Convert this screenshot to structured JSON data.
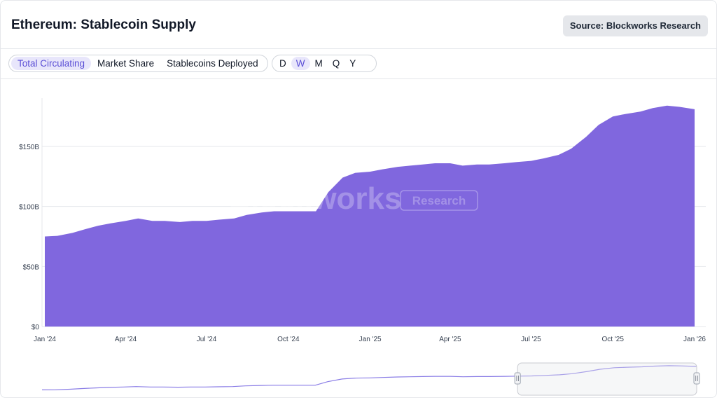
{
  "header": {
    "title": "Ethereum: Stablecoin Supply",
    "source": "Source: Blockworks Research"
  },
  "controls": {
    "metrics": [
      "Total Circulating",
      "Market Share",
      "Stablecoins Deployed"
    ],
    "active_metric": 0,
    "periods": [
      "D",
      "W",
      "M",
      "Q",
      "Y"
    ],
    "active_period": 1
  },
  "watermark": {
    "brand": "Blockworks",
    "badge": "Research"
  },
  "colors": {
    "area": "#8067de",
    "accent": "#5b4fd6",
    "grid": "#e5e7eb"
  },
  "chart_data": {
    "type": "area",
    "xlabel": "",
    "ylabel": "",
    "ylim": [
      0,
      190
    ],
    "x_ticks": [
      "Jan '24",
      "Apr '24",
      "Jul '24",
      "Oct '24",
      "Jan '25",
      "Apr '25",
      "Jul '25",
      "Oct '25",
      "Jan '26"
    ],
    "y_ticks": [
      "$0",
      "$50B",
      "$100B",
      "$150B"
    ],
    "y_tick_values": [
      0,
      50,
      100,
      150
    ],
    "grid": true,
    "series": [
      {
        "unit": "USD billions",
        "x": [
          "2024-01-01",
          "2024-01-15",
          "2024-02-01",
          "2024-02-15",
          "2024-03-01",
          "2024-03-15",
          "2024-04-01",
          "2024-04-15",
          "2024-05-01",
          "2024-05-15",
          "2024-06-01",
          "2024-06-15",
          "2024-07-01",
          "2024-07-15",
          "2024-08-01",
          "2024-08-15",
          "2024-09-01",
          "2024-09-15",
          "2024-10-01",
          "2024-10-15",
          "2024-11-01",
          "2024-11-15",
          "2024-12-01",
          "2024-12-15",
          "2025-01-01",
          "2025-01-15",
          "2025-02-01",
          "2025-02-15",
          "2025-03-01",
          "2025-03-15",
          "2025-04-01",
          "2025-04-15",
          "2025-05-01",
          "2025-05-15",
          "2025-06-01",
          "2025-06-15",
          "2025-07-01",
          "2025-07-15",
          "2025-08-01",
          "2025-08-15",
          "2025-09-01",
          "2025-09-15",
          "2025-10-01",
          "2025-10-15",
          "2025-11-01",
          "2025-11-15",
          "2025-12-01",
          "2025-12-15",
          "2026-01-01"
        ],
        "values": [
          75,
          75.5,
          78,
          81,
          84,
          86,
          88,
          90,
          88,
          88,
          87,
          88,
          88,
          89,
          90,
          93,
          95,
          96,
          96,
          96,
          96,
          112,
          124,
          128,
          129,
          131,
          133,
          134,
          135,
          136,
          136,
          134,
          135,
          135,
          136,
          137,
          138,
          140,
          143,
          148,
          158,
          168,
          175,
          177,
          179,
          182,
          184,
          183,
          181
        ]
      }
    ]
  },
  "navigator": {
    "window_start": "2025-06-15",
    "window_end": "2026-01-01"
  }
}
